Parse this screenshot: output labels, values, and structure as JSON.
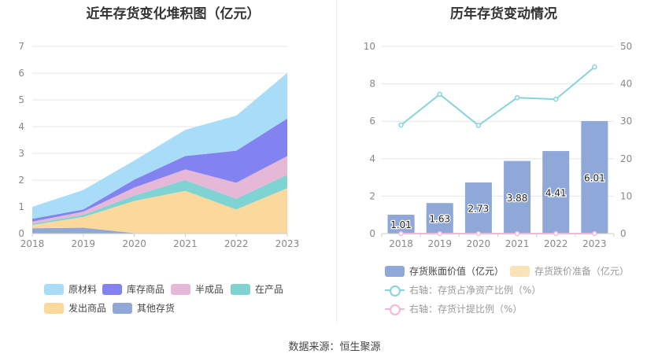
{
  "left_chart": {
    "title": "近年存货变化堆积图（亿元）"
  },
  "right_chart": {
    "title": "历年存货变动情况"
  },
  "source": "数据来源：恒生聚源",
  "legend_left": [
    {
      "label": "原材料",
      "color": "#a8dcf7"
    },
    {
      "label": "库存商品",
      "color": "#8282f0"
    },
    {
      "label": "半成品",
      "color": "#e6b8d8"
    },
    {
      "label": "在产品",
      "color": "#7fd3d3"
    },
    {
      "label": "发出商品",
      "color": "#fbd99c"
    },
    {
      "label": "其他存货",
      "color": "#8fa8d8"
    }
  ],
  "legend_right": [
    {
      "label": "存货账面价值（亿元）",
      "color": "#8fa8d8"
    },
    {
      "label": "存货跌价准备（亿元）",
      "color": "#fbe3b8"
    },
    {
      "label": "右轴：存货占净资产比例（%）",
      "color": "#86d4dc"
    },
    {
      "label": "右轴：存货计提比例（%）",
      "color": "#f0b8d8"
    }
  ],
  "chart_data": [
    {
      "type": "area",
      "stacked": true,
      "title": "近年存货变化堆积图（亿元）",
      "categories": [
        "2018",
        "2019",
        "2020",
        "2021",
        "2022",
        "2023"
      ],
      "ylim": [
        0,
        7
      ],
      "yticks": [
        0,
        1,
        2,
        3,
        4,
        5,
        6,
        7
      ],
      "grid": true,
      "legend_position": "bottom",
      "series": [
        {
          "name": "其他存货",
          "color": "#8fa8d8",
          "values": [
            0.2,
            0.22,
            0.02,
            0.0,
            0.0,
            0.0
          ]
        },
        {
          "name": "发出商品",
          "color": "#fbd99c",
          "values": [
            0.12,
            0.4,
            1.2,
            1.6,
            0.9,
            1.7
          ]
        },
        {
          "name": "在产品",
          "color": "#7fd3d3",
          "values": [
            0.05,
            0.08,
            0.2,
            0.4,
            0.4,
            0.5
          ]
        },
        {
          "name": "半成品",
          "color": "#e6b8d8",
          "values": [
            0.08,
            0.12,
            0.3,
            0.4,
            0.6,
            0.7
          ]
        },
        {
          "name": "库存商品",
          "color": "#8282f0",
          "values": [
            0.1,
            0.08,
            0.3,
            0.5,
            1.2,
            1.4
          ]
        },
        {
          "name": "原材料",
          "color": "#a8dcf7",
          "values": [
            0.45,
            0.73,
            0.71,
            0.98,
            1.31,
            1.71
          ]
        }
      ]
    },
    {
      "type": "bar",
      "title": "历年存货变动情况",
      "categories": [
        "2018",
        "2019",
        "2020",
        "2021",
        "2022",
        "2023"
      ],
      "ylim": [
        0,
        10
      ],
      "yticks": [
        0,
        2,
        4,
        6,
        8,
        10
      ],
      "y2lim": [
        0,
        50
      ],
      "y2ticks": [
        0,
        10,
        20,
        30,
        40,
        50
      ],
      "grid": true,
      "legend_position": "bottom",
      "series": [
        {
          "name": "存货账面价值（亿元）",
          "axis": "left",
          "kind": "bar",
          "color": "#8fa8d8",
          "values": [
            1.01,
            1.63,
            2.73,
            3.88,
            4.41,
            6.01
          ],
          "labels": [
            "1.01",
            "1.63",
            "2.73",
            "3.88",
            "4.41",
            "6.01"
          ]
        },
        {
          "name": "存货跌价准备（亿元）",
          "axis": "left",
          "kind": "bar",
          "color": "#fbe3b8",
          "values": [
            0.0,
            0.0,
            0.0,
            0.0,
            0.0,
            0.0
          ]
        },
        {
          "name": "右轴：存货占净资产比例（%）",
          "axis": "right",
          "kind": "line",
          "color": "#86d4dc",
          "values": [
            29.0,
            37.2,
            28.9,
            36.3,
            35.9,
            44.5
          ]
        },
        {
          "name": "右轴：存货计提比例（%）",
          "axis": "right",
          "kind": "line",
          "color": "#f0b8d8",
          "values": [
            0.0,
            0.0,
            0.0,
            0.0,
            0.0,
            0.0
          ]
        }
      ]
    }
  ]
}
